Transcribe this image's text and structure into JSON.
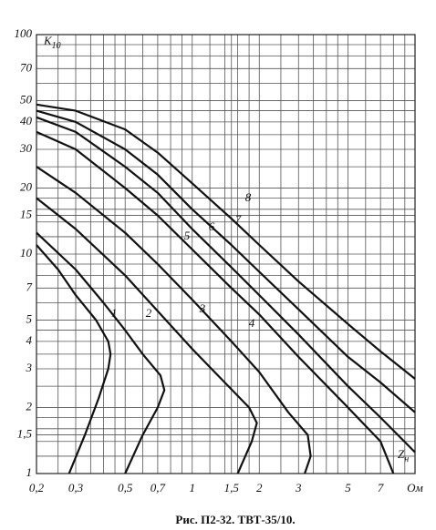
{
  "chart_data": {
    "type": "line",
    "title": "Рис. П2-32. ТВТ-35/10.",
    "y_label": {
      "main": "K",
      "sub": "10"
    },
    "x_label": {
      "main": "Z",
      "sub": "н"
    },
    "xscale": "log",
    "yscale": "log",
    "grid": true,
    "color": "#111111",
    "xlim": [
      0.2,
      10
    ],
    "ylim": [
      1,
      100
    ],
    "xticks": [
      {
        "value": 0.2,
        "label": "0,2"
      },
      {
        "value": 0.3,
        "label": "0,3"
      },
      {
        "value": 0.5,
        "label": "0,5"
      },
      {
        "value": 0.7,
        "label": "0,7"
      },
      1,
      {
        "value": 1.5,
        "label": "1,5"
      },
      2,
      3,
      5,
      7,
      {
        "value": 10,
        "label": "Ом"
      }
    ],
    "yticks": [
      1,
      {
        "value": 1.5,
        "label": "1,5"
      },
      2,
      3,
      4,
      5,
      7,
      10,
      15,
      20,
      30,
      40,
      50,
      70,
      100
    ],
    "xgrid": [
      0.25,
      0.35,
      0.4,
      0.45,
      0.6,
      0.8,
      0.9,
      1.2,
      1.4,
      1.6,
      1.8,
      2.5,
      3.5,
      4,
      4.5,
      6,
      8,
      9
    ],
    "ygrid": [
      1.2,
      1.4,
      1.6,
      1.8,
      2.5,
      3.5,
      4.5,
      6,
      8,
      9,
      12,
      14,
      16,
      18,
      25,
      35,
      45,
      60,
      80,
      90
    ],
    "series": [
      {
        "name": "1",
        "x": [
          0.2,
          0.25,
          0.3,
          0.37,
          0.42,
          0.43,
          0.42,
          0.38,
          0.33,
          0.28
        ],
        "values": [
          11,
          8.5,
          6.5,
          5,
          4,
          3.5,
          3,
          2.2,
          1.5,
          1
        ]
      },
      {
        "name": "2",
        "x": [
          0.2,
          0.3,
          0.4,
          0.5,
          0.6,
          0.72,
          0.75,
          0.7,
          0.6,
          0.5
        ],
        "values": [
          12.5,
          8.5,
          6,
          4.5,
          3.5,
          2.8,
          2.4,
          2,
          1.5,
          1
        ]
      },
      {
        "name": "3",
        "x": [
          0.2,
          0.3,
          0.5,
          0.7,
          1,
          1.4,
          1.8,
          1.95,
          1.85,
          1.6
        ],
        "values": [
          18,
          13,
          8,
          5.5,
          3.7,
          2.6,
          2,
          1.7,
          1.4,
          1
        ]
      },
      {
        "name": "4",
        "x": [
          0.2,
          0.3,
          0.5,
          0.7,
          1,
          1.5,
          2,
          2.7,
          3.3,
          3.4,
          3.2
        ],
        "values": [
          25,
          19,
          12.5,
          9,
          6.2,
          4,
          2.9,
          1.9,
          1.5,
          1.2,
          1
        ]
      },
      {
        "name": "5",
        "x": [
          0.2,
          0.3,
          0.5,
          0.7,
          1,
          1.5,
          2,
          3,
          5,
          7,
          8
        ],
        "values": [
          36,
          30,
          20,
          15,
          10.5,
          7,
          5.3,
          3.4,
          2,
          1.4,
          1
        ]
      },
      {
        "name": "6",
        "x": [
          0.2,
          0.3,
          0.5,
          0.7,
          1,
          1.5,
          2,
          3,
          5,
          7,
          10
        ],
        "values": [
          42,
          36,
          25,
          19,
          13,
          8.7,
          6.5,
          4.3,
          2.5,
          1.8,
          1.25
        ]
      },
      {
        "name": "7",
        "x": [
          0.2,
          0.3,
          0.5,
          0.7,
          1,
          1.5,
          2,
          3,
          5,
          7,
          10
        ],
        "values": [
          45,
          40,
          30,
          23,
          16,
          11,
          8.3,
          5.6,
          3.4,
          2.6,
          1.9
        ]
      },
      {
        "name": "8",
        "x": [
          0.2,
          0.3,
          0.5,
          0.7,
          1,
          1.5,
          2,
          3,
          5,
          7,
          10
        ],
        "values": [
          48,
          45,
          37,
          29,
          21,
          14.5,
          11,
          7.5,
          4.8,
          3.6,
          2.7
        ]
      }
    ]
  }
}
